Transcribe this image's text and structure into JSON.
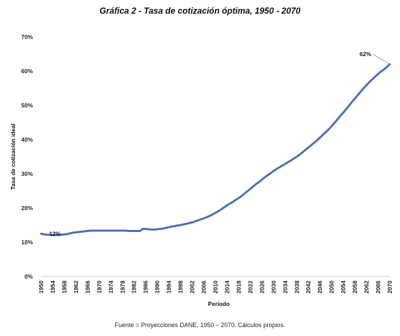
{
  "chart_data": {
    "type": "line",
    "title": "Gráfica 2 - Tasa de cotización óptima, 1950 - 2070",
    "xlabel": "Periodo",
    "ylabel": "Tasa de cotización ideal",
    "source": "Fuente = Proyecciones DANE, 1950 – 2070. Cálculos propios.",
    "ylim": [
      0,
      70
    ],
    "xlim": [
      1950,
      2070
    ],
    "grid": false,
    "legend": "none",
    "y_ticks": [
      0,
      10,
      20,
      30,
      40,
      50,
      60,
      70
    ],
    "y_tick_labels": [
      "0%",
      "10%",
      "20%",
      "30%",
      "40%",
      "50%",
      "60%",
      "70%"
    ],
    "x_ticks": [
      1950,
      1954,
      1958,
      1962,
      1966,
      1970,
      1974,
      1978,
      1982,
      1986,
      1990,
      1994,
      1998,
      2002,
      2006,
      2010,
      2014,
      2018,
      2022,
      2026,
      2030,
      2034,
      2038,
      2042,
      2046,
      2050,
      2054,
      2058,
      2062,
      2066,
      2070
    ],
    "x": [
      1950,
      1951,
      1952,
      1953,
      1954,
      1955,
      1956,
      1957,
      1958,
      1959,
      1960,
      1961,
      1962,
      1963,
      1964,
      1965,
      1966,
      1967,
      1968,
      1969,
      1970,
      1971,
      1972,
      1973,
      1974,
      1975,
      1976,
      1977,
      1978,
      1979,
      1980,
      1981,
      1982,
      1983,
      1984,
      1985,
      1986,
      1987,
      1988,
      1989,
      1990,
      1991,
      1992,
      1993,
      1994,
      1995,
      1996,
      1997,
      1998,
      1999,
      2000,
      2001,
      2002,
      2003,
      2004,
      2005,
      2006,
      2007,
      2008,
      2009,
      2010,
      2011,
      2012,
      2013,
      2014,
      2015,
      2016,
      2017,
      2018,
      2019,
      2020,
      2021,
      2022,
      2023,
      2024,
      2025,
      2026,
      2027,
      2028,
      2029,
      2030,
      2031,
      2032,
      2033,
      2034,
      2035,
      2036,
      2037,
      2038,
      2039,
      2040,
      2041,
      2042,
      2043,
      2044,
      2045,
      2046,
      2047,
      2048,
      2049,
      2050,
      2051,
      2052,
      2053,
      2054,
      2055,
      2056,
      2057,
      2058,
      2059,
      2060,
      2061,
      2062,
      2063,
      2064,
      2065,
      2066,
      2067,
      2068,
      2069,
      2070
    ],
    "values": [
      12.5,
      12.3,
      12.2,
      12.2,
      12.1,
      12.1,
      12.1,
      12.2,
      12.3,
      12.4,
      12.6,
      12.8,
      12.9,
      13.0,
      13.1,
      13.2,
      13.3,
      13.4,
      13.4,
      13.4,
      13.4,
      13.4,
      13.4,
      13.4,
      13.4,
      13.4,
      13.4,
      13.4,
      13.4,
      13.4,
      13.3,
      13.3,
      13.3,
      13.3,
      13.3,
      13.9,
      13.9,
      13.8,
      13.7,
      13.7,
      13.8,
      13.9,
      14.0,
      14.2,
      14.4,
      14.6,
      14.7,
      14.9,
      15.0,
      15.2,
      15.4,
      15.6,
      15.8,
      16.1,
      16.4,
      16.7,
      17.0,
      17.3,
      17.7,
      18.1,
      18.6,
      19.1,
      19.6,
      20.2,
      20.8,
      21.3,
      21.8,
      22.4,
      22.9,
      23.5,
      24.2,
      24.9,
      25.6,
      26.3,
      27.0,
      27.6,
      28.3,
      29.0,
      29.6,
      30.2,
      30.8,
      31.4,
      31.9,
      32.4,
      32.9,
      33.4,
      33.9,
      34.5,
      35.0,
      35.6,
      36.3,
      37.0,
      37.7,
      38.4,
      39.1,
      39.8,
      40.6,
      41.4,
      42.2,
      43.0,
      43.9,
      44.9,
      45.9,
      46.9,
      47.9,
      48.9,
      49.9,
      51.0,
      52.0,
      53.0,
      54.0,
      55.0,
      55.9,
      56.8,
      57.6,
      58.4,
      59.2,
      59.9,
      60.5,
      61.2,
      62.0
    ],
    "series_color": "#4a70b0",
    "annotations": [
      {
        "text": "12%",
        "x": 1955,
        "y": 12.1
      },
      {
        "text": "62%",
        "x": 2070,
        "y": 62.0
      }
    ]
  }
}
